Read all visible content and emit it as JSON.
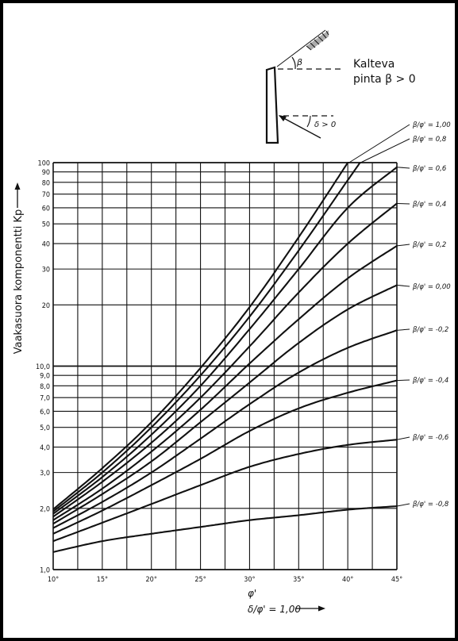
{
  "colors": {
    "frame": "#000000",
    "paper": "#ffffff",
    "ink": "#111111"
  },
  "inset": {
    "label_line1": "Kalteva",
    "label_line2": "pinta β > 0",
    "beta_symbol": "β",
    "delta_label": "δ > 0"
  },
  "chart_data": {
    "type": "line",
    "ylabel": "Vaakasuora komponentti Kp",
    "ylabel_arrow": "⟶",
    "xlabel_phi": "φ'",
    "xlabel_ratio": "δ/φ' = 1,00",
    "x_scale": "linear",
    "y_scale": "log",
    "xlim": [
      10,
      45
    ],
    "ylim": [
      1,
      100
    ],
    "grid": true,
    "x_ticks": [
      10,
      12.5,
      15,
      17.5,
      20,
      22.5,
      25,
      27.5,
      30,
      32.5,
      35,
      37.5,
      40,
      42.5,
      45
    ],
    "x_tick_labels": [
      {
        "value": 10,
        "label": "10°"
      },
      {
        "value": 15,
        "label": "15°"
      },
      {
        "value": 20,
        "label": "20°"
      },
      {
        "value": 25,
        "label": "25°"
      },
      {
        "value": 30,
        "label": "30°"
      },
      {
        "value": 35,
        "label": "35°"
      },
      {
        "value": 40,
        "label": "40°"
      },
      {
        "value": 45,
        "label": "45°"
      }
    ],
    "y_ticks": [
      1,
      2,
      3,
      4,
      5,
      6,
      7,
      8,
      9,
      10,
      20,
      30,
      40,
      50,
      60,
      70,
      80,
      90,
      100
    ],
    "y_tick_labels": [
      {
        "value": 1,
        "label": "1,0"
      },
      {
        "value": 2,
        "label": "2,0"
      },
      {
        "value": 3,
        "label": "3,0"
      },
      {
        "value": 4,
        "label": "4,0"
      },
      {
        "value": 5,
        "label": "5,0"
      },
      {
        "value": 6,
        "label": "6,0"
      },
      {
        "value": 7,
        "label": "7,0"
      },
      {
        "value": 8,
        "label": "8,0"
      },
      {
        "value": 9,
        "label": "9,0"
      },
      {
        "value": 10,
        "label": "10,0"
      },
      {
        "value": 20,
        "label": "20"
      },
      {
        "value": 30,
        "label": "30"
      },
      {
        "value": 40,
        "label": "40"
      },
      {
        "value": 50,
        "label": "50"
      },
      {
        "value": 60,
        "label": "60"
      },
      {
        "value": 70,
        "label": "70"
      },
      {
        "value": 80,
        "label": "80"
      },
      {
        "value": 90,
        "label": "90"
      },
      {
        "value": 100,
        "label": "100"
      }
    ],
    "x": [
      10,
      15,
      20,
      25,
      30,
      35,
      40,
      45
    ],
    "series": [
      {
        "name": "β/φ' = 1,00",
        "values": [
          1.98,
          3.15,
          5.3,
          9.8,
          19.5,
          43,
          100,
          null
        ]
      },
      {
        "name": "β/φ' = 0,8",
        "values": [
          1.93,
          3.0,
          5.0,
          9.0,
          17.5,
          37,
          82,
          null
        ]
      },
      {
        "name": "β/φ' = 0,6",
        "values": [
          1.88,
          2.85,
          4.6,
          8.0,
          15.2,
          30,
          60,
          95
        ]
      },
      {
        "name": "β/φ' = 0,4",
        "values": [
          1.82,
          2.7,
          4.2,
          7.0,
          12.5,
          23,
          40,
          63
        ]
      },
      {
        "name": "β/φ' = 0,2",
        "values": [
          1.75,
          2.5,
          3.8,
          6.1,
          10.3,
          17,
          27,
          39
        ]
      },
      {
        "name": "β/φ' = 0,00",
        "values": [
          1.68,
          2.35,
          3.4,
          5.3,
          8.3,
          13,
          19,
          25
        ]
      },
      {
        "name": "β/φ' = -0,2",
        "values": [
          1.6,
          2.15,
          3.0,
          4.4,
          6.5,
          9.3,
          12.3,
          15
        ]
      },
      {
        "name": "β/φ' = -0,4",
        "values": [
          1.5,
          1.95,
          2.6,
          3.5,
          4.8,
          6.2,
          7.4,
          8.5
        ]
      },
      {
        "name": "β/φ' = -0,6",
        "values": [
          1.38,
          1.7,
          2.1,
          2.6,
          3.2,
          3.7,
          4.1,
          4.35
        ]
      },
      {
        "name": "β/φ' = -0,8",
        "values": [
          1.22,
          1.38,
          1.5,
          1.62,
          1.75,
          1.85,
          1.97,
          2.05
        ]
      }
    ],
    "curve_labels": [
      {
        "series": 0,
        "text": "β/φ' = 1,00"
      },
      {
        "series": 1,
        "text": "β/φ' = 0,8"
      },
      {
        "series": 2,
        "text": "β/φ' = 0,6"
      },
      {
        "series": 3,
        "text": "β/φ' = 0,4"
      },
      {
        "series": 4,
        "text": "β/φ' = 0,2"
      },
      {
        "series": 5,
        "text": "β/φ' = 0,00"
      },
      {
        "series": 6,
        "text": "β/φ' = -0,2"
      },
      {
        "series": 7,
        "text": "β/φ' = -0,4"
      },
      {
        "series": 8,
        "text": "β/φ' = -0,6"
      },
      {
        "series": 9,
        "text": "β/φ' = -0,8"
      }
    ]
  }
}
